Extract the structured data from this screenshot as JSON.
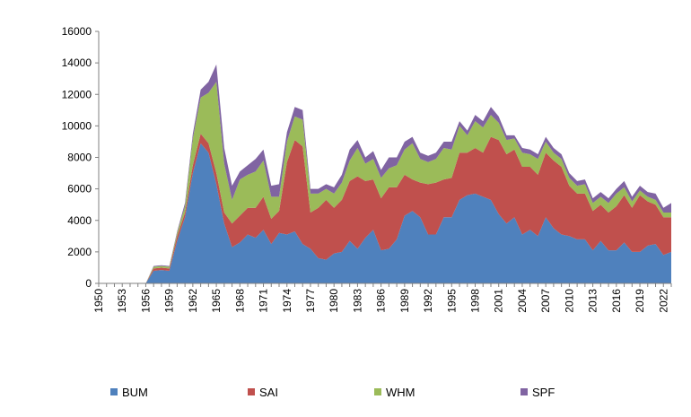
{
  "chart_data": {
    "type": "area",
    "stacked": true,
    "title": "",
    "xlabel": "",
    "ylabel": "",
    "ylim": [
      0,
      16000
    ],
    "yticks": [
      0,
      2000,
      4000,
      6000,
      8000,
      10000,
      12000,
      14000,
      16000
    ],
    "y_tick_labels": [
      "0",
      "2000",
      "4000",
      "6000",
      "8000",
      "10000",
      "12000",
      "14000",
      "16000"
    ],
    "xlim": [
      1950,
      2023
    ],
    "xticks": [
      1950,
      1953,
      1956,
      1959,
      1962,
      1965,
      1968,
      1971,
      1974,
      1977,
      1980,
      1983,
      1986,
      1989,
      1992,
      1995,
      1998,
      2001,
      2004,
      2007,
      2010,
      2013,
      2016,
      2019,
      2022
    ],
    "x_tick_labels": [
      "1950",
      "1953",
      "1956",
      "1959",
      "1962",
      "1965",
      "1968",
      "1971",
      "1974",
      "1977",
      "1980",
      "1983",
      "1986",
      "1989",
      "1992",
      "1995",
      "1998",
      "2001",
      "2004",
      "2007",
      "2010",
      "2013",
      "2016",
      "2019",
      "2022"
    ],
    "grid": false,
    "legend_position": "bottom",
    "x": [
      1950,
      1951,
      1952,
      1953,
      1954,
      1955,
      1956,
      1957,
      1958,
      1959,
      1960,
      1961,
      1962,
      1963,
      1964,
      1965,
      1966,
      1967,
      1968,
      1969,
      1970,
      1971,
      1972,
      1973,
      1974,
      1975,
      1976,
      1977,
      1978,
      1979,
      1980,
      1981,
      1982,
      1983,
      1984,
      1985,
      1986,
      1987,
      1988,
      1989,
      1990,
      1991,
      1992,
      1993,
      1994,
      1995,
      1996,
      1997,
      1998,
      1999,
      2000,
      2001,
      2002,
      2003,
      2004,
      2005,
      2006,
      2007,
      2008,
      2009,
      2010,
      2011,
      2012,
      2013,
      2014,
      2015,
      2016,
      2017,
      2018,
      2019,
      2020,
      2021,
      2022,
      2023
    ],
    "series": [
      {
        "name": "BUM",
        "color": "#4f81bd",
        "values": [
          0,
          0,
          0,
          0,
          0,
          0,
          0,
          800,
          850,
          800,
          2700,
          4200,
          7000,
          8900,
          8300,
          6300,
          3800,
          2300,
          2600,
          3100,
          2900,
          3400,
          2500,
          3200,
          3100,
          3300,
          2500,
          2200,
          1600,
          1500,
          1900,
          2000,
          2700,
          2200,
          2900,
          3400,
          2100,
          2200,
          2800,
          4300,
          4600,
          4200,
          3100,
          3100,
          4200,
          4200,
          5300,
          5600,
          5700,
          5500,
          5300,
          4400,
          3800,
          4200,
          3100,
          3400,
          3000,
          4200,
          3500,
          3100,
          3000,
          2800,
          2800,
          2100,
          2700,
          2100,
          2100,
          2600,
          2000,
          2000,
          2400,
          2500,
          1800,
          2000
        ]
      },
      {
        "name": "SAI",
        "color": "#c0504d",
        "values": [
          0,
          0,
          0,
          0,
          0,
          0,
          0,
          150,
          150,
          150,
          300,
          300,
          500,
          600,
          600,
          700,
          700,
          1500,
          1700,
          1700,
          1900,
          2100,
          1600,
          1400,
          4600,
          5800,
          6200,
          2300,
          3200,
          3800,
          2900,
          3300,
          3800,
          4600,
          3600,
          3200,
          3300,
          3900,
          3300,
          2600,
          2000,
          2200,
          3200,
          3300,
          2400,
          2500,
          3000,
          2700,
          2900,
          2800,
          4000,
          4700,
          4400,
          4300,
          4300,
          4000,
          3900,
          4100,
          4300,
          4300,
          3200,
          2900,
          2900,
          2500,
          2300,
          2400,
          2800,
          3000,
          2800,
          3600,
          2800,
          2500,
          2400,
          2200
        ]
      },
      {
        "name": "WHM",
        "color": "#9bbb59",
        "values": [
          0,
          0,
          0,
          0,
          0,
          0,
          0,
          100,
          100,
          100,
          200,
          400,
          1700,
          2300,
          3200,
          5800,
          3100,
          1500,
          2300,
          2100,
          2300,
          2300,
          1400,
          900,
          1300,
          1500,
          1700,
          1200,
          900,
          700,
          900,
          1100,
          1300,
          1800,
          1100,
          1300,
          1300,
          1200,
          1400,
          1600,
          2300,
          1500,
          1400,
          1500,
          2000,
          1800,
          1700,
          1100,
          1700,
          1600,
          1400,
          1100,
          900,
          700,
          900,
          800,
          1000,
          700,
          500,
          500,
          500,
          500,
          600,
          500,
          500,
          600,
          800,
          500,
          400,
          300,
          300,
          300,
          300,
          300
        ]
      },
      {
        "name": "SPF",
        "color": "#8064a2",
        "values": [
          0,
          0,
          0,
          0,
          0,
          0,
          0,
          50,
          50,
          50,
          100,
          200,
          300,
          500,
          700,
          1100,
          1000,
          900,
          500,
          600,
          800,
          700,
          700,
          800,
          600,
          600,
          600,
          300,
          300,
          300,
          400,
          500,
          700,
          500,
          400,
          500,
          500,
          700,
          500,
          500,
          400,
          400,
          400,
          400,
          400,
          500,
          300,
          300,
          400,
          400,
          500,
          400,
          300,
          200,
          300,
          300,
          300,
          300,
          300,
          300,
          300,
          300,
          300,
          300,
          300,
          300,
          300,
          400,
          300,
          300,
          300,
          400,
          300,
          600
        ]
      }
    ]
  }
}
